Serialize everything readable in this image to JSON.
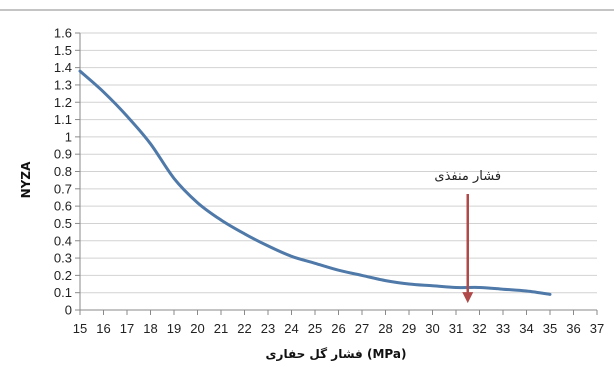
{
  "chart_data": {
    "type": "line",
    "xlabel": "فشار گل حفاری (MPa)",
    "ylabel": "NYZA",
    "xlim": [
      15,
      37
    ],
    "ylim": [
      0,
      1.6
    ],
    "x_ticks": [
      15,
      16,
      17,
      18,
      19,
      20,
      21,
      22,
      23,
      24,
      25,
      26,
      27,
      28,
      29,
      30,
      31,
      32,
      33,
      34,
      35,
      36,
      37
    ],
    "y_ticks": [
      0,
      0.1,
      0.2,
      0.3,
      0.4,
      0.5,
      0.6,
      0.7,
      0.8,
      0.9,
      1,
      1.1,
      1.2,
      1.3,
      1.4,
      1.5,
      1.6
    ],
    "grid": "horizontal",
    "legend": "none",
    "series": [
      {
        "color": "#4f79a8",
        "x": [
          15,
          16,
          17,
          18,
          19,
          20,
          21,
          22,
          23,
          24,
          25,
          26,
          27,
          28,
          29,
          30,
          31,
          32,
          33,
          34,
          35
        ],
        "values": [
          1.38,
          1.26,
          1.12,
          0.96,
          0.76,
          0.62,
          0.52,
          0.44,
          0.37,
          0.31,
          0.27,
          0.23,
          0.2,
          0.17,
          0.15,
          0.14,
          0.13,
          0.13,
          0.12,
          0.11,
          0.09
        ]
      }
    ],
    "annotations": [
      {
        "text": "فشار منفذی",
        "x": 31.5,
        "y_from": 0.67,
        "y_to": 0.04,
        "color": "#b04a4a"
      }
    ]
  }
}
